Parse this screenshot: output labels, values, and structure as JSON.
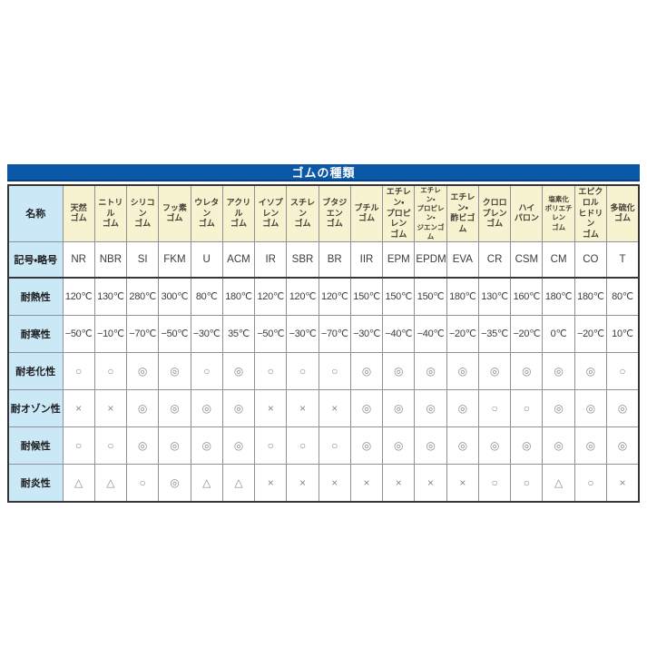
{
  "title_bar": {
    "label": "ゴムの種類"
  },
  "colors": {
    "title_bg": "#0b57a8",
    "title_bg_edge": "#073f7e",
    "title_text": "#ffffff",
    "row_label_bg": "#cbe8f7",
    "column_header_bg": "#f7f2cf",
    "cell_bg": "#ffffff",
    "grid_border": "#8e9298",
    "outer_border": "#33373b",
    "mark_color": "#8a8a8a",
    "value_text": "#3c3c3c"
  },
  "chart_data": {
    "type": "table",
    "title": "ゴムの種類",
    "row_labels": [
      "名称",
      "記号・略号",
      "耐熱性",
      "耐寒性",
      "耐老化性",
      "耐オゾン性",
      "耐候性",
      "耐炎性"
    ],
    "legend_marks": {
      "excellent": "◎",
      "good": "○",
      "fair": "△",
      "poor": "×"
    },
    "columns": [
      {
        "name_lines": [
          "天然",
          "ゴム"
        ],
        "symbol": "NR",
        "heat": "120℃",
        "cold": "−50℃",
        "aging": "○",
        "ozone": "×",
        "weather": "○",
        "flame": "△"
      },
      {
        "name_lines": [
          "ニトリル",
          "ゴム"
        ],
        "symbol": "NBR",
        "heat": "130℃",
        "cold": "−10℃",
        "aging": "○",
        "ozone": "×",
        "weather": "○",
        "flame": "△"
      },
      {
        "name_lines": [
          "シリコン",
          "ゴム"
        ],
        "symbol": "SI",
        "heat": "280℃",
        "cold": "−70℃",
        "aging": "◎",
        "ozone": "◎",
        "weather": "◎",
        "flame": "○"
      },
      {
        "name_lines": [
          "フッ素",
          "ゴム"
        ],
        "symbol": "FKM",
        "heat": "300℃",
        "cold": "−50℃",
        "aging": "◎",
        "ozone": "◎",
        "weather": "◎",
        "flame": "◎"
      },
      {
        "name_lines": [
          "ウレタン",
          "ゴム"
        ],
        "symbol": "U",
        "heat": "80℃",
        "cold": "−30℃",
        "aging": "○",
        "ozone": "◎",
        "weather": "◎",
        "flame": "△"
      },
      {
        "name_lines": [
          "アクリル",
          "ゴム"
        ],
        "symbol": "ACM",
        "heat": "180℃",
        "cold": "35℃",
        "aging": "◎",
        "ozone": "◎",
        "weather": "◎",
        "flame": "△"
      },
      {
        "name_lines": [
          "イソプレン",
          "ゴム"
        ],
        "symbol": "IR",
        "heat": "120℃",
        "cold": "−50℃",
        "aging": "○",
        "ozone": "×",
        "weather": "○",
        "flame": "×"
      },
      {
        "name_lines": [
          "スチレン",
          "ゴム"
        ],
        "symbol": "SBR",
        "heat": "120℃",
        "cold": "−30℃",
        "aging": "○",
        "ozone": "×",
        "weather": "○",
        "flame": "×"
      },
      {
        "name_lines": [
          "ブタジエン",
          "ゴム"
        ],
        "symbol": "BR",
        "heat": "120℃",
        "cold": "−70℃",
        "aging": "○",
        "ozone": "×",
        "weather": "○",
        "flame": "×"
      },
      {
        "name_lines": [
          "ブチル",
          "ゴム"
        ],
        "symbol": "IIR",
        "heat": "150℃",
        "cold": "−30℃",
        "aging": "◎",
        "ozone": "◎",
        "weather": "◎",
        "flame": "×"
      },
      {
        "name_lines": [
          "エチレン・",
          "プロピレン",
          "ゴム"
        ],
        "symbol": "EPM",
        "heat": "150℃",
        "cold": "−40℃",
        "aging": "◎",
        "ozone": "◎",
        "weather": "◎",
        "flame": "×"
      },
      {
        "name_lines": [
          "エチレン・",
          "プロピレン・",
          "ジエンゴム"
        ],
        "symbol": "EPDM",
        "heat": "150℃",
        "cold": "−40℃",
        "aging": "◎",
        "ozone": "◎",
        "weather": "◎",
        "flame": "×"
      },
      {
        "name_lines": [
          "エチレン・",
          "酢ビゴム"
        ],
        "symbol": "EVA",
        "heat": "180℃",
        "cold": "−20℃",
        "aging": "◎",
        "ozone": "◎",
        "weather": "◎",
        "flame": "×"
      },
      {
        "name_lines": [
          "クロロ",
          "プレン",
          "ゴム"
        ],
        "symbol": "CR",
        "heat": "130℃",
        "cold": "−35℃",
        "aging": "◎",
        "ozone": "○",
        "weather": "◎",
        "flame": "○"
      },
      {
        "name_lines": [
          "ハイ",
          "パロン"
        ],
        "symbol": "CSM",
        "heat": "160℃",
        "cold": "−20℃",
        "aging": "◎",
        "ozone": "○",
        "weather": "◎",
        "flame": "○"
      },
      {
        "name_lines": [
          "塩素化",
          "ポリエチレン",
          "ゴム"
        ],
        "symbol": "CM",
        "heat": "180℃",
        "cold": "0℃",
        "aging": "◎",
        "ozone": "◎",
        "weather": "◎",
        "flame": "△"
      },
      {
        "name_lines": [
          "エピクロル",
          "ヒドリン",
          "ゴム"
        ],
        "symbol": "CO",
        "heat": "180℃",
        "cold": "−20℃",
        "aging": "◎",
        "ozone": "◎",
        "weather": "◎",
        "flame": "○"
      },
      {
        "name_lines": [
          "多硫化",
          "ゴム"
        ],
        "symbol": "T",
        "heat": "80℃",
        "cold": "10℃",
        "aging": "○",
        "ozone": "◎",
        "weather": "◎",
        "flame": "×"
      }
    ]
  }
}
